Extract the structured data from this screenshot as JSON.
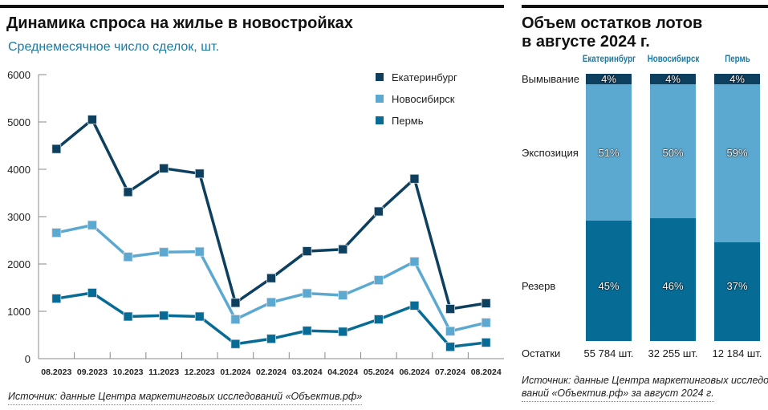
{
  "left": {
    "title": "Динамика спроса на жилье в новостройках",
    "subtitle": "Среднемесячное число сделок, шт.",
    "source": "Источник: данные Центра маркетинговых исследований «Объектив.рф»"
  },
  "right": {
    "title_line1": "Объем остатков лотов",
    "title_line2": "в августе 2024 г.",
    "source_line1": "Источник: данные Центра маркетинговых исследо-",
    "source_line2": "ваний «Объектив.рф» за август 2024 г."
  },
  "chart_data": [
    {
      "type": "line",
      "title": "Динамика спроса на жилье в новостройках",
      "ylabel": "Среднемесячное число сделок, шт.",
      "categories": [
        "08.2023",
        "09.2023",
        "10.2023",
        "11.2023",
        "12.2023",
        "01.2024",
        "02.2024",
        "03.2024",
        "04.2024",
        "05.2024",
        "06.2024",
        "07.2024",
        "08.2024"
      ],
      "ylim": [
        0,
        6000
      ],
      "yticks": [
        "0",
        "1000",
        "2000",
        "3000",
        "4000",
        "5000",
        "6000"
      ],
      "grid": false,
      "legend": "top-right",
      "series": [
        {
          "name": "Екатеринбург",
          "color": "#0d3f5f",
          "values": [
            4430,
            5050,
            3520,
            4020,
            3910,
            1180,
            1700,
            2270,
            2310,
            3110,
            3800,
            1050,
            1170
          ]
        },
        {
          "name": "Новосибирск",
          "color": "#5ba9d1",
          "values": [
            2660,
            2820,
            2150,
            2250,
            2260,
            830,
            1190,
            1380,
            1340,
            1660,
            2050,
            580,
            760
          ]
        },
        {
          "name": "Пермь",
          "color": "#066c95",
          "values": [
            1270,
            1390,
            890,
            910,
            890,
            310,
            420,
            590,
            570,
            830,
            1120,
            250,
            340
          ]
        }
      ]
    },
    {
      "type": "bar",
      "stacked": true,
      "title": "Объем остатков лотов в августе 2024 г.",
      "categories": [
        "Екатеринбург",
        "Новосибирск",
        "Пермь"
      ],
      "series": [
        {
          "name": "Вымывание",
          "color": "#0d3f5f",
          "values": [
            4,
            4,
            4
          ],
          "labels": [
            "4%",
            "4%",
            "4%"
          ]
        },
        {
          "name": "Экспозиция",
          "color": "#5ba9d1",
          "values": [
            51,
            50,
            59
          ],
          "labels": [
            "51%",
            "50%",
            "59%"
          ]
        },
        {
          "name": "Резерв",
          "color": "#066c95",
          "values": [
            45,
            46,
            37
          ],
          "labels": [
            "45%",
            "46%",
            "37%"
          ]
        }
      ],
      "totals_label": "Остатки",
      "totals": [
        "55 784 шт.",
        "32 255 шт.",
        "12 184 шт."
      ]
    }
  ]
}
